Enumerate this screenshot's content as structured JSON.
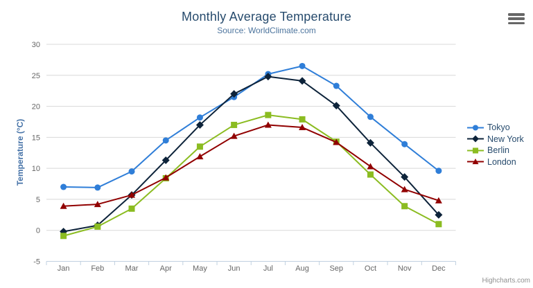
{
  "credit": "Highcharts.com",
  "export_menu": {
    "icon": "hamburger-icon"
  },
  "axes": {
    "y_tick_labels": [
      "-5",
      "0",
      "5",
      "10",
      "15",
      "20",
      "25",
      "30"
    ],
    "x_tick_labels": [
      "Jan",
      "Feb",
      "Mar",
      "Apr",
      "May",
      "Jun",
      "Jul",
      "Aug",
      "Sep",
      "Oct",
      "Nov",
      "Dec"
    ]
  },
  "colors": {
    "title": "#274b6d",
    "subtitle": "#4d759e",
    "axis_title": "#4572a7",
    "axis_labels": "#666666",
    "gridline": "#d8d8d8",
    "axis_line": "#c0d0e0",
    "legend_text": "#274b6d",
    "credit_text": "#909090"
  },
  "chart_data": {
    "type": "line",
    "title": "Monthly Average Temperature",
    "subtitle": "Source: WorldClimate.com",
    "categories": [
      "Jan",
      "Feb",
      "Mar",
      "Apr",
      "May",
      "Jun",
      "Jul",
      "Aug",
      "Sep",
      "Oct",
      "Nov",
      "Dec"
    ],
    "series": [
      {
        "name": "Tokyo",
        "color": "#2f7ed8",
        "marker": "circle",
        "values": [
          7.0,
          6.9,
          9.5,
          14.5,
          18.2,
          21.5,
          25.2,
          26.5,
          23.3,
          18.3,
          13.9,
          9.6
        ]
      },
      {
        "name": "New York",
        "color": "#0d233a",
        "marker": "diamond",
        "values": [
          -0.2,
          0.8,
          5.7,
          11.3,
          17.0,
          22.0,
          24.8,
          24.1,
          20.1,
          14.1,
          8.6,
          2.5
        ]
      },
      {
        "name": "Berlin",
        "color": "#8bbc21",
        "marker": "square",
        "values": [
          -0.9,
          0.6,
          3.5,
          8.4,
          13.5,
          17.0,
          18.6,
          17.9,
          14.3,
          9.0,
          3.9,
          1.0
        ]
      },
      {
        "name": "London",
        "color": "#910000",
        "marker": "triangle",
        "values": [
          3.9,
          4.2,
          5.7,
          8.5,
          11.9,
          15.2,
          17.0,
          16.6,
          14.2,
          10.3,
          6.6,
          4.8
        ]
      }
    ],
    "xlabel": "",
    "ylabel": "Temperature (°C)",
    "ylim": [
      -5,
      30
    ],
    "ytick_interval": 5,
    "grid": true,
    "legend_position": "right"
  }
}
